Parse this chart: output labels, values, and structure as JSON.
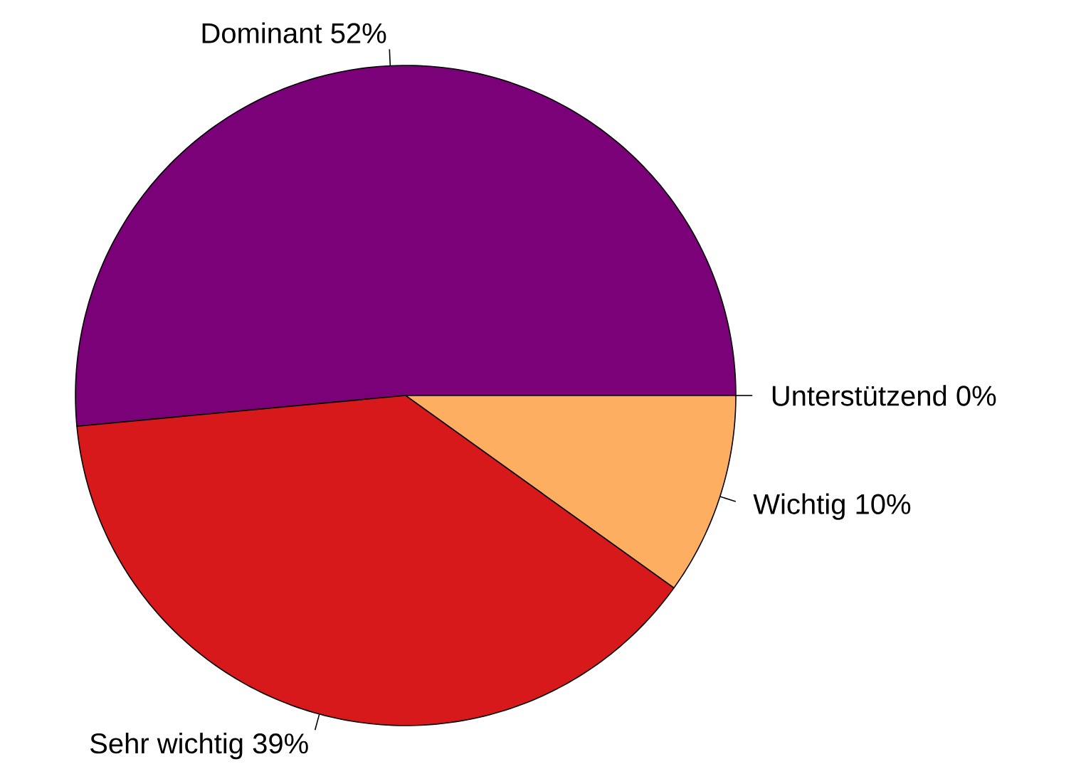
{
  "chart_data": {
    "type": "pie",
    "categories": [
      "Dominant",
      "Sehr wichtig",
      "Wichtig",
      "Unterstützend"
    ],
    "values": [
      52,
      39,
      10,
      0
    ],
    "value_labels": [
      "52%",
      "39%",
      "10%",
      "0%"
    ],
    "colors": [
      "#7a0177",
      "#d7191c",
      "#fdae61",
      "#abdda4"
    ]
  }
}
